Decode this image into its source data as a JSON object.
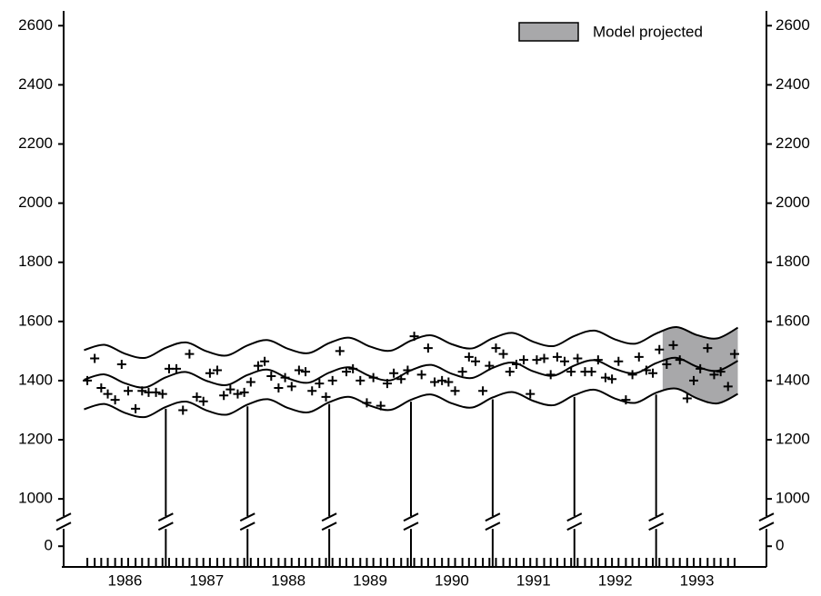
{
  "chart_data": {
    "type": "scatter",
    "xlim": [
      1985.75,
      1994.35
    ],
    "ylim": [
      -70,
      2650
    ],
    "y_break": [
      80,
      920
    ],
    "mirror_y_axis": true,
    "legend": "upper right",
    "xticks": [
      {
        "value": 1986.5,
        "label": "1986"
      },
      {
        "value": 1987.5,
        "label": "1987"
      },
      {
        "value": 1988.5,
        "label": "1988"
      },
      {
        "value": 1989.5,
        "label": "1989"
      },
      {
        "value": 1990.5,
        "label": "1990"
      },
      {
        "value": 1991.5,
        "label": "1991"
      },
      {
        "value": 1992.5,
        "label": "1992"
      },
      {
        "value": 1993.5,
        "label": "1993"
      }
    ],
    "yticks": [
      0,
      1000,
      1200,
      1400,
      1600,
      1800,
      2000,
      2200,
      2400,
      2600
    ],
    "projection": {
      "label": "Model projected",
      "from": 1993.08,
      "to": 1994.0,
      "color": "#a8a8aa",
      "bounds": [
        2,
        3
      ]
    },
    "series": [
      {
        "type": "scatter",
        "marker": "+",
        "color": "#000000",
        "x": [
          1986.04,
          1986.13,
          1986.21,
          1986.29,
          1986.38,
          1986.46,
          1986.54,
          1986.63,
          1986.71,
          1986.79,
          1986.88,
          1986.96,
          1987.04,
          1987.13,
          1987.21,
          1987.29,
          1987.38,
          1987.46,
          1987.54,
          1987.63,
          1987.71,
          1987.79,
          1987.88,
          1987.96,
          1988.04,
          1988.13,
          1988.21,
          1988.29,
          1988.38,
          1988.46,
          1988.54,
          1988.63,
          1988.71,
          1988.79,
          1988.88,
          1988.96,
          1989.04,
          1989.13,
          1989.21,
          1989.29,
          1989.38,
          1989.46,
          1989.54,
          1989.63,
          1989.71,
          1989.79,
          1989.88,
          1989.96,
          1990.04,
          1990.13,
          1990.21,
          1990.29,
          1990.38,
          1990.46,
          1990.54,
          1990.63,
          1990.71,
          1990.79,
          1990.88,
          1990.96,
          1991.04,
          1991.13,
          1991.21,
          1991.29,
          1991.38,
          1991.46,
          1991.54,
          1991.63,
          1991.71,
          1991.79,
          1991.88,
          1991.96,
          1992.04,
          1992.13,
          1992.21,
          1992.29,
          1992.38,
          1992.46,
          1992.54,
          1992.63,
          1992.71,
          1992.79,
          1992.88,
          1992.96,
          1993.04,
          1993.13,
          1993.21,
          1993.29,
          1993.38,
          1993.46,
          1993.54,
          1993.63,
          1993.71,
          1993.79,
          1993.88,
          1993.96
        ],
        "values": [
          1400,
          1475,
          1375,
          1355,
          1335,
          1455,
          1365,
          1305,
          1365,
          1360,
          1360,
          1355,
          1440,
          1440,
          1300,
          1490,
          1345,
          1330,
          1425,
          1435,
          1350,
          1370,
          1355,
          1360,
          1395,
          1450,
          1465,
          1415,
          1375,
          1410,
          1380,
          1435,
          1430,
          1365,
          1390,
          1345,
          1400,
          1500,
          1430,
          1440,
          1400,
          1325,
          1410,
          1315,
          1390,
          1425,
          1405,
          1435,
          1550,
          1420,
          1510,
          1395,
          1400,
          1395,
          1365,
          1430,
          1480,
          1465,
          1365,
          1450,
          1510,
          1490,
          1430,
          1455,
          1470,
          1355,
          1470,
          1475,
          1420,
          1480,
          1465,
          1430,
          1475,
          1430,
          1430,
          1470,
          1410,
          1405,
          1465,
          1335,
          1420,
          1480,
          1435,
          1425,
          1505,
          1455,
          1520,
          1470,
          1340,
          1400,
          1440,
          1510,
          1420,
          1430,
          1380,
          1490
        ]
      },
      {
        "type": "line",
        "color": "#000000",
        "x": [
          1986,
          1986.25,
          1986.5,
          1986.75,
          1987,
          1987.25,
          1987.5,
          1987.75,
          1988,
          1988.25,
          1988.5,
          1988.75,
          1989,
          1989.25,
          1989.5,
          1989.75,
          1990,
          1990.25,
          1990.5,
          1990.75,
          1991,
          1991.25,
          1991.5,
          1991.75,
          1992,
          1992.25,
          1992.5,
          1992.75,
          1993,
          1993.25,
          1993.5,
          1993.75,
          1994
        ],
        "values": [
          1403,
          1421,
          1391,
          1377,
          1411,
          1429,
          1399,
          1385,
          1419,
          1437,
          1407,
          1393,
          1427,
          1445,
          1415,
          1401,
          1435,
          1453,
          1423,
          1409,
          1443,
          1461,
          1431,
          1417,
          1451,
          1469,
          1439,
          1425,
          1459,
          1477,
          1447,
          1433,
          1467
        ]
      },
      {
        "type": "line",
        "color": "#000000",
        "x": [
          1986,
          1986.25,
          1986.5,
          1986.75,
          1987,
          1987.25,
          1987.5,
          1987.75,
          1988,
          1988.25,
          1988.5,
          1988.75,
          1989,
          1989.25,
          1989.5,
          1989.75,
          1990,
          1990.25,
          1990.5,
          1990.75,
          1991,
          1991.25,
          1991.5,
          1991.75,
          1992,
          1992.25,
          1992.5,
          1992.75,
          1993,
          1993.25,
          1993.5,
          1993.75,
          1994
        ],
        "values": [
          1503,
          1521,
          1491,
          1477,
          1511,
          1529,
          1499,
          1485,
          1519,
          1537,
          1507,
          1493,
          1527,
          1545,
          1515,
          1501,
          1535,
          1553,
          1523,
          1509,
          1543,
          1561,
          1531,
          1517,
          1551,
          1569,
          1539,
          1525,
          1559,
          1581,
          1554,
          1543,
          1579
        ]
      },
      {
        "type": "line",
        "color": "#000000",
        "x": [
          1986,
          1986.25,
          1986.5,
          1986.75,
          1987,
          1987.25,
          1987.5,
          1987.75,
          1988,
          1988.25,
          1988.5,
          1988.75,
          1989,
          1989.25,
          1989.5,
          1989.75,
          1990,
          1990.25,
          1990.5,
          1990.75,
          1991,
          1991.25,
          1991.5,
          1991.75,
          1992,
          1992.25,
          1992.5,
          1992.75,
          1993,
          1993.25,
          1993.5,
          1993.75,
          1994
        ],
        "values": [
          1303,
          1321,
          1291,
          1277,
          1311,
          1329,
          1299,
          1285,
          1319,
          1337,
          1307,
          1293,
          1327,
          1345,
          1315,
          1301,
          1335,
          1353,
          1323,
          1309,
          1343,
          1361,
          1331,
          1317,
          1351,
          1369,
          1339,
          1325,
          1359,
          1373,
          1340,
          1323,
          1355
        ]
      }
    ]
  }
}
